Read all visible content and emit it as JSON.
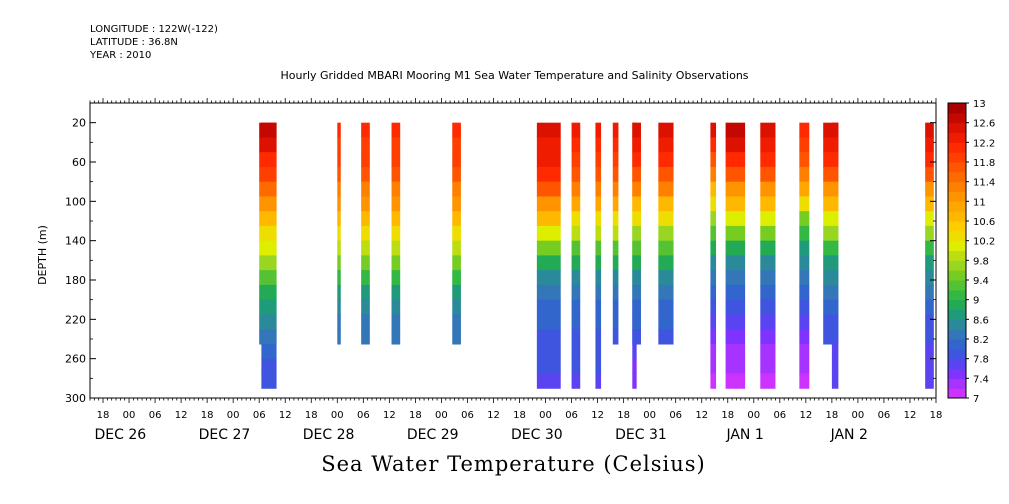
{
  "header": {
    "longitude": "LONGITUDE : 122W(-122)",
    "latitude": "LATITUDE : 36.8N",
    "year": "YEAR : 2010"
  },
  "chart_data": {
    "type": "heatmap",
    "title": "Hourly Gridded MBARI Mooring M1 Sea Water Temperature and Salinity Observations",
    "bottom_title": "Sea Water Temperature (Celsius)",
    "ylabel": "DEPTH (m)",
    "ylim": [
      0,
      300
    ],
    "y_inverted": true,
    "yticks": [
      20,
      60,
      100,
      140,
      180,
      220,
      260,
      300
    ],
    "x_unit": "hours since Dec 26 2010 00:00",
    "xlim": [
      -9,
      186
    ],
    "xticks": [
      {
        "hour": -6,
        "label": "18"
      },
      {
        "hour": 0,
        "label": "00"
      },
      {
        "hour": 6,
        "label": "06"
      },
      {
        "hour": 12,
        "label": "12"
      },
      {
        "hour": 18,
        "label": "18"
      },
      {
        "hour": 24,
        "label": "00"
      },
      {
        "hour": 30,
        "label": "06"
      },
      {
        "hour": 36,
        "label": "12"
      },
      {
        "hour": 42,
        "label": "18"
      },
      {
        "hour": 48,
        "label": "00"
      },
      {
        "hour": 54,
        "label": "06"
      },
      {
        "hour": 60,
        "label": "12"
      },
      {
        "hour": 66,
        "label": "18"
      },
      {
        "hour": 72,
        "label": "00"
      },
      {
        "hour": 78,
        "label": "06"
      },
      {
        "hour": 84,
        "label": "12"
      },
      {
        "hour": 90,
        "label": "18"
      },
      {
        "hour": 96,
        "label": "00"
      },
      {
        "hour": 102,
        "label": "06"
      },
      {
        "hour": 108,
        "label": "12"
      },
      {
        "hour": 114,
        "label": "18"
      },
      {
        "hour": 120,
        "label": "00"
      },
      {
        "hour": 126,
        "label": "06"
      },
      {
        "hour": 132,
        "label": "12"
      },
      {
        "hour": 138,
        "label": "18"
      },
      {
        "hour": 144,
        "label": "00"
      },
      {
        "hour": 150,
        "label": "06"
      },
      {
        "hour": 156,
        "label": "12"
      },
      {
        "hour": 162,
        "label": "18"
      },
      {
        "hour": 168,
        "label": "00"
      },
      {
        "hour": 174,
        "label": "06"
      },
      {
        "hour": 180,
        "label": "12"
      },
      {
        "hour": 186,
        "label": "18"
      }
    ],
    "day_labels": [
      {
        "hour": -2,
        "label": "DEC 26"
      },
      {
        "hour": 22,
        "label": "DEC 27"
      },
      {
        "hour": 46,
        "label": "DEC 28"
      },
      {
        "hour": 70,
        "label": "DEC 29"
      },
      {
        "hour": 94,
        "label": "DEC 30"
      },
      {
        "hour": 118,
        "label": "DEC 31"
      },
      {
        "hour": 142,
        "label": "JAN  1"
      },
      {
        "hour": 166,
        "label": "JAN  2"
      }
    ],
    "colorbar": {
      "label_values": [
        "13",
        "12.6",
        "12.2",
        "11.8",
        "11.4",
        "11",
        "10.6",
        "10.2",
        "9.8",
        "9.4",
        "9",
        "8.6",
        "8.2",
        "7.8",
        "7.4",
        "7"
      ],
      "levels": [
        7,
        7.2,
        7.4,
        7.6,
        7.8,
        8,
        8.2,
        8.4,
        8.6,
        8.8,
        9,
        9.2,
        9.4,
        9.6,
        9.8,
        10,
        10.2,
        10.4,
        10.6,
        10.8,
        11,
        11.2,
        11.4,
        11.6,
        11.8,
        12,
        12.2,
        12.4,
        12.6,
        12.8,
        13
      ],
      "colors": [
        "#cc33ff",
        "#a633ff",
        "#7f33ff",
        "#5a44f2",
        "#3f55e0",
        "#3366cc",
        "#3377b8",
        "#2a8a9a",
        "#1f9a7a",
        "#22aa55",
        "#33b844",
        "#55c233",
        "#77cc22",
        "#99d622",
        "#bbdd11",
        "#ddee00",
        "#eedd00",
        "#ffcc00",
        "#ffb800",
        "#ffa600",
        "#ff9400",
        "#ff8000",
        "#ff6a00",
        "#ff5500",
        "#ff3f00",
        "#ff2a00",
        "#f01c00",
        "#dd1100",
        "#c40800",
        "#aa0000"
      ]
    },
    "columns": [
      {
        "start": 30,
        "end": 34,
        "bottom": 250,
        "temps": [
          12.6,
          12.4,
          12.1,
          11.8,
          11.4,
          11.0,
          10.6,
          10.3,
          10.0,
          9.6,
          9.2,
          8.9,
          8.6,
          8.4,
          8.2
        ]
      },
      {
        "start": 30.5,
        "end": 34,
        "bottom": 300,
        "temps": [
          12.6,
          12.4,
          12.1,
          11.8,
          11.4,
          11.0,
          10.6,
          10.3,
          10.0,
          9.6,
          9.2,
          8.9,
          8.6,
          8.4,
          8.2,
          8.0,
          7.9,
          7.8
        ]
      },
      {
        "start": 48,
        "end": 48.8,
        "bottom": 250,
        "temps": [
          12.0,
          11.9,
          11.8,
          11.6,
          11.3,
          11.0,
          10.6,
          10.3,
          9.8,
          9.4,
          9.0,
          8.7,
          8.5,
          8.3,
          8.2
        ]
      },
      {
        "start": 53.5,
        "end": 55.5,
        "bottom": 250,
        "temps": [
          12.0,
          11.9,
          11.8,
          11.6,
          11.3,
          11.0,
          10.6,
          10.3,
          9.8,
          9.4,
          9.0,
          8.7,
          8.5,
          8.3,
          8.2
        ]
      },
      {
        "start": 60.5,
        "end": 62.5,
        "bottom": 250,
        "temps": [
          12.0,
          11.9,
          11.8,
          11.6,
          11.3,
          11.0,
          10.6,
          10.3,
          9.8,
          9.4,
          9.0,
          8.7,
          8.5,
          8.3,
          8.2
        ]
      },
      {
        "start": 74.5,
        "end": 76.5,
        "bottom": 250,
        "temps": [
          12.0,
          11.9,
          11.8,
          11.6,
          11.3,
          11.0,
          10.6,
          10.3,
          9.8,
          9.4,
          9.0,
          8.7,
          8.5,
          8.3,
          8.2
        ]
      },
      {
        "start": 94,
        "end": 99.5,
        "bottom": 300,
        "temps": [
          12.4,
          12.3,
          12.2,
          12.0,
          11.6,
          11.1,
          10.6,
          10.0,
          9.4,
          8.9,
          8.5,
          8.3,
          8.1,
          8.0,
          7.9,
          7.8,
          7.8,
          7.7
        ]
      },
      {
        "start": 102,
        "end": 104,
        "bottom": 300,
        "temps": [
          12.3,
          12.1,
          11.9,
          11.6,
          11.2,
          10.8,
          10.3,
          9.8,
          9.3,
          8.8,
          8.5,
          8.3,
          8.1,
          8.0,
          7.9,
          7.8,
          7.8,
          7.7
        ]
      },
      {
        "start": 107.5,
        "end": 108.8,
        "bottom": 300,
        "temps": [
          12.3,
          12.1,
          11.9,
          11.6,
          11.2,
          10.8,
          10.3,
          9.8,
          9.3,
          8.8,
          8.5,
          8.3,
          8.1,
          8.0,
          7.9,
          7.8,
          7.8,
          7.7
        ]
      },
      {
        "start": 111.5,
        "end": 112.8,
        "bottom": 250,
        "temps": [
          12.3,
          12.1,
          11.9,
          11.6,
          11.2,
          10.8,
          10.3,
          9.8,
          9.3,
          8.8,
          8.5,
          8.3,
          8.1,
          8.0,
          7.9
        ]
      },
      {
        "start": 116,
        "end": 118,
        "bottom": 250,
        "temps": [
          12.4,
          12.2,
          12.0,
          11.6,
          11.2,
          10.7,
          10.2,
          9.7,
          9.2,
          8.8,
          8.5,
          8.3,
          8.1,
          8.0,
          7.9
        ]
      },
      {
        "start": 116,
        "end": 117,
        "bottom": 300,
        "temps": [
          12.4,
          12.2,
          12.0,
          11.6,
          11.2,
          10.7,
          10.2,
          9.7,
          9.2,
          8.8,
          8.5,
          8.3,
          8.1,
          8.0,
          7.9,
          7.7,
          7.5,
          7.4
        ]
      },
      {
        "start": 122,
        "end": 125.5,
        "bottom": 250,
        "temps": [
          12.4,
          12.2,
          12.0,
          11.6,
          11.2,
          10.7,
          10.2,
          9.7,
          9.2,
          8.8,
          8.5,
          8.3,
          8.1,
          8.0,
          7.9
        ]
      },
      {
        "start": 134,
        "end": 135.3,
        "bottom": 300,
        "temps": [
          12.4,
          12.1,
          11.7,
          11.2,
          10.7,
          10.2,
          9.7,
          9.2,
          8.8,
          8.5,
          8.2,
          8.0,
          7.8,
          7.6,
          7.4,
          7.3,
          7.2,
          7.1
        ]
      },
      {
        "start": 137.5,
        "end": 142,
        "bottom": 300,
        "temps": [
          12.7,
          12.5,
          12.1,
          11.6,
          11.1,
          10.6,
          10.0,
          9.4,
          8.9,
          8.5,
          8.2,
          8.0,
          7.8,
          7.6,
          7.4,
          7.3,
          7.2,
          7.1
        ]
      },
      {
        "start": 145.5,
        "end": 149,
        "bottom": 300,
        "temps": [
          12.5,
          12.3,
          12.0,
          11.6,
          11.1,
          10.6,
          10.0,
          9.4,
          8.9,
          8.5,
          8.2,
          8.0,
          7.8,
          7.6,
          7.4,
          7.3,
          7.2,
          7.1
        ]
      },
      {
        "start": 154.5,
        "end": 156.8,
        "bottom": 300,
        "temps": [
          12.0,
          11.8,
          11.6,
          11.3,
          10.9,
          10.2,
          9.5,
          9.0,
          8.7,
          8.4,
          8.2,
          8.0,
          7.8,
          7.6,
          7.4,
          7.3,
          7.2,
          7.1
        ]
      },
      {
        "start": 160,
        "end": 163.5,
        "bottom": 250,
        "temps": [
          12.4,
          12.2,
          12.0,
          11.6,
          11.1,
          10.6,
          10.1,
          9.6,
          9.1,
          8.7,
          8.4,
          8.2,
          8.0,
          7.9,
          7.8
        ]
      },
      {
        "start": 162,
        "end": 163.5,
        "bottom": 300,
        "temps": [
          12.4,
          12.2,
          12.0,
          11.6,
          11.1,
          10.6,
          10.1,
          9.6,
          9.1,
          8.7,
          8.4,
          8.2,
          8.0,
          7.9,
          7.8,
          7.7,
          7.6,
          7.6
        ]
      },
      {
        "start": 183.5,
        "end": 185.5,
        "bottom": 300,
        "temps": [
          12.4,
          12.2,
          12.0,
          11.6,
          11.1,
          10.6,
          10.1,
          9.6,
          9.1,
          8.7,
          8.4,
          8.2,
          8.0,
          7.9,
          7.8,
          7.7,
          7.6,
          7.6
        ]
      }
    ]
  }
}
